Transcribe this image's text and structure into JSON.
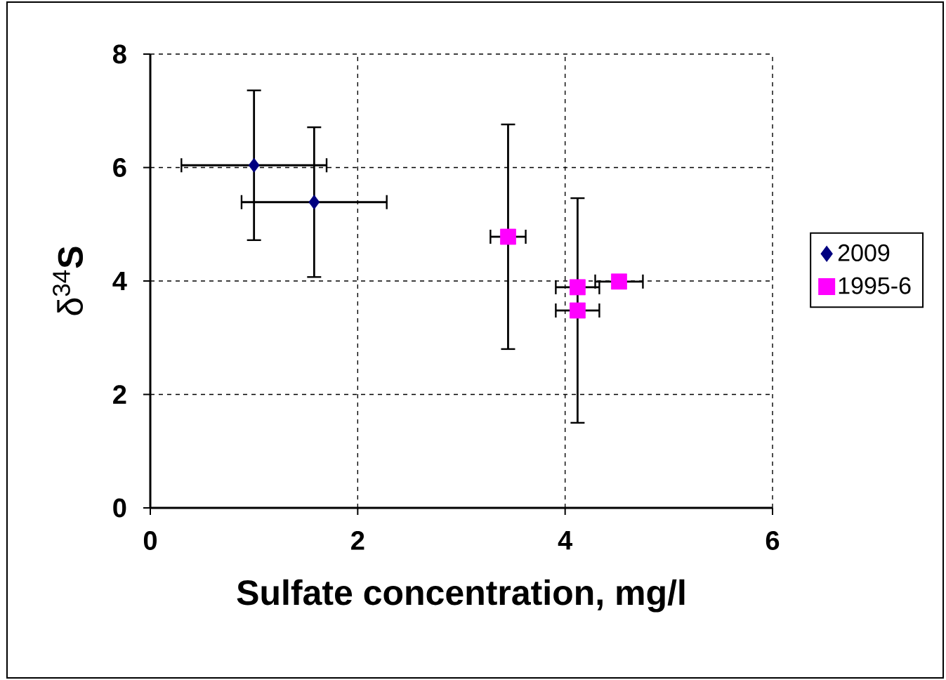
{
  "chart_data": {
    "type": "scatter",
    "xlabel": "Sulfate concentration, mg/l",
    "ylabel": "δ$^{34}$**S**",
    "xlim": [
      0,
      6
    ],
    "ylim": [
      0,
      8
    ],
    "xticks": [
      0,
      2,
      4,
      6
    ],
    "yticks": [
      0,
      2,
      4,
      6,
      8
    ],
    "grid": true,
    "legend": "right",
    "series": [
      {
        "name": "2009",
        "color": "#000080",
        "marker": "diamond",
        "x": [
          1.0,
          1.58
        ],
        "values": [
          6.04,
          5.39
        ],
        "errors": [
          1.32,
          1.32
        ],
        "xerrors": [
          0.7,
          0.7
        ]
      },
      {
        "name": "1995-6",
        "color": "#ff00ff",
        "marker": "square",
        "x": [
          3.45,
          4.12,
          4.12,
          4.52
        ],
        "values": [
          4.78,
          3.89,
          3.48,
          3.99
        ],
        "errors": [
          1.98,
          null,
          1.98,
          null
        ],
        "xerrors": [
          0.17,
          0.21,
          0.21,
          0.23
        ]
      }
    ]
  }
}
